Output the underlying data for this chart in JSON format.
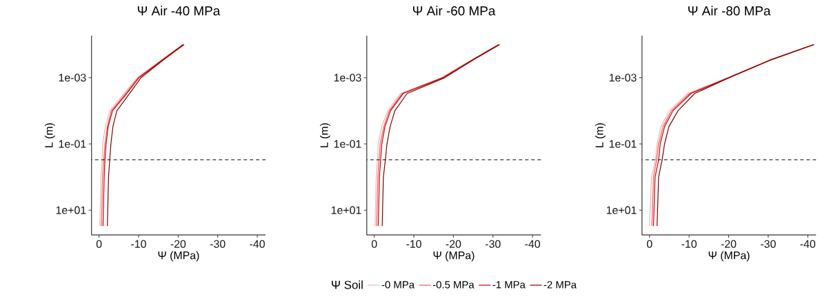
{
  "chart_data": [
    {
      "type": "line",
      "title": "Ψ Air -40 MPa",
      "xlabel": "Ψ (MPa)",
      "ylabel": "L (m)",
      "log": "y",
      "xlim": [
        1.9,
        -42.1
      ],
      "ylim": [
        56,
        5.4e-05
      ],
      "xticks": [
        0,
        -10,
        -20,
        -30,
        -40
      ],
      "yticks": [
        {
          "value": 0.001,
          "label": "1e-03"
        },
        {
          "value": 0.1,
          "label": "1e-01"
        },
        {
          "value": 10,
          "label": "1e+01"
        }
      ],
      "ref_lines": [
        {
          "axis": "y",
          "value": 0.3,
          "color": "#000000",
          "line_style": "dashed"
        }
      ],
      "series": [
        {
          "color": "#f4b3b3",
          "x": [
            -0.2,
            -0.5,
            -0.8,
            -0.9,
            -1.6,
            -2.7,
            -6.3,
            -9.7,
            -15.6,
            -21.1
          ],
          "values": [
            30,
            1,
            0.3,
            0.1,
            0.03,
            0.01,
            0.003,
            0.001,
            0.0003,
            0.0001
          ]
        },
        {
          "color": "#ef5a5a",
          "x": [
            -0.6,
            -0.9,
            -1.2,
            -1.5,
            -2.1,
            -3.1,
            -6.7,
            -9.9,
            -15.8,
            -21.2
          ],
          "values": [
            30,
            1,
            0.3,
            0.1,
            0.03,
            0.01,
            0.003,
            0.001,
            0.0003,
            0.0001
          ]
        },
        {
          "color": "#cc0000",
          "x": [
            -1.0,
            -1.3,
            -1.5,
            -1.8,
            -2.3,
            -3.4,
            -7.0,
            -10.1,
            -15.9,
            -21.3
          ],
          "values": [
            30,
            1,
            0.3,
            0.1,
            0.03,
            0.01,
            0.003,
            0.001,
            0.0003,
            0.0001
          ]
        },
        {
          "color": "#7a0000",
          "x": [
            -2.1,
            -2.4,
            -2.7,
            -3.0,
            -3.5,
            -4.5,
            -7.7,
            -10.6,
            -16.1,
            -21.5
          ],
          "values": [
            30,
            1,
            0.3,
            0.1,
            0.03,
            0.01,
            0.003,
            0.001,
            0.0003,
            0.0001
          ]
        }
      ]
    },
    {
      "type": "line",
      "title": "Ψ Air -60 MPa",
      "xlabel": "Ψ (MPa)",
      "ylabel": "L (m)",
      "log": "y",
      "xlim": [
        1.9,
        -42.1
      ],
      "ylim": [
        56,
        5.4e-05
      ],
      "xticks": [
        0,
        -10,
        -20,
        -30,
        -40
      ],
      "yticks": [
        {
          "value": 0.001,
          "label": "1e-03"
        },
        {
          "value": 0.1,
          "label": "1e-01"
        },
        {
          "value": 10,
          "label": "1e+01"
        }
      ],
      "ref_lines": [
        {
          "axis": "y",
          "value": 0.3,
          "color": "#000000",
          "line_style": "dashed"
        }
      ],
      "legend": "bottom",
      "legend_title": "Ψ Soil",
      "series": [
        {
          "name": "-0 MPa",
          "color": "#f4b3b3",
          "x": [
            -0.2,
            -0.5,
            -0.8,
            -1.0,
            -1.9,
            -3.4,
            -6.6,
            -17.0,
            -24.4,
            -31.3
          ],
          "values": [
            30,
            1,
            0.3,
            0.1,
            0.03,
            0.01,
            0.003,
            0.001,
            0.0003,
            0.0001
          ]
        },
        {
          "name": "-0.5 MPa",
          "color": "#ef5a5a",
          "x": [
            -0.6,
            -0.9,
            -1.2,
            -1.5,
            -2.4,
            -3.8,
            -7.0,
            -17.2,
            -24.5,
            -31.4
          ],
          "values": [
            30,
            1,
            0.3,
            0.1,
            0.03,
            0.01,
            0.003,
            0.001,
            0.0003,
            0.0001
          ]
        },
        {
          "name": "-1 MPa",
          "color": "#cc0000",
          "x": [
            -1.0,
            -1.3,
            -1.6,
            -1.9,
            -2.7,
            -4.1,
            -7.3,
            -17.4,
            -24.6,
            -31.5
          ],
          "values": [
            30,
            1,
            0.3,
            0.1,
            0.03,
            0.01,
            0.003,
            0.001,
            0.0003,
            0.0001
          ]
        },
        {
          "name": "-2 MPa",
          "color": "#7a0000",
          "x": [
            -2.0,
            -2.3,
            -2.8,
            -3.2,
            -4.0,
            -5.2,
            -8.3,
            -17.8,
            -24.8,
            -31.7
          ],
          "values": [
            30,
            1,
            0.3,
            0.1,
            0.03,
            0.01,
            0.003,
            0.001,
            0.0003,
            0.0001
          ]
        }
      ]
    },
    {
      "type": "line",
      "title": "Ψ Air -80 MPa",
      "xlabel": "Ψ (MPa)",
      "ylabel": "L (m)",
      "log": "y",
      "xlim": [
        1.9,
        -42.1
      ],
      "ylim": [
        56,
        5.4e-05
      ],
      "xticks": [
        0,
        -10,
        -20,
        -30,
        -40
      ],
      "yticks": [
        {
          "value": 0.001,
          "label": "1e-03"
        },
        {
          "value": 0.1,
          "label": "1e-01"
        },
        {
          "value": 10,
          "label": "1e+01"
        }
      ],
      "ref_lines": [
        {
          "axis": "y",
          "value": 0.3,
          "color": "#000000",
          "line_style": "dashed"
        }
      ],
      "series": [
        {
          "color": "#f4b3b3",
          "x": [
            0.0,
            -0.5,
            -1.5,
            -1.9,
            -2.9,
            -5.0,
            -9.6,
            -19.8,
            -30.1,
            -41.3
          ],
          "values": [
            30,
            1,
            0.3,
            0.1,
            0.03,
            0.01,
            0.003,
            0.001,
            0.0003,
            0.0001
          ]
        },
        {
          "color": "#ef5a5a",
          "x": [
            -0.6,
            -1.0,
            -1.8,
            -2.3,
            -3.4,
            -5.5,
            -10.1,
            -19.9,
            -30.2,
            -41.4
          ],
          "values": [
            30,
            1,
            0.3,
            0.1,
            0.03,
            0.01,
            0.003,
            0.001,
            0.0003,
            0.0001
          ]
        },
        {
          "color": "#cc0000",
          "x": [
            -1.0,
            -1.4,
            -2.3,
            -2.7,
            -3.8,
            -5.9,
            -10.5,
            -20.0,
            -30.3,
            -41.5
          ],
          "values": [
            30,
            1,
            0.3,
            0.1,
            0.03,
            0.01,
            0.003,
            0.001,
            0.0003,
            0.0001
          ]
        },
        {
          "color": "#7a0000",
          "x": [
            -1.9,
            -2.3,
            -3.2,
            -3.8,
            -4.9,
            -7.2,
            -11.4,
            -20.2,
            -30.4,
            -41.6
          ],
          "values": [
            30,
            1,
            0.3,
            0.1,
            0.03,
            0.01,
            0.003,
            0.001,
            0.0003,
            0.0001
          ]
        }
      ]
    }
  ]
}
